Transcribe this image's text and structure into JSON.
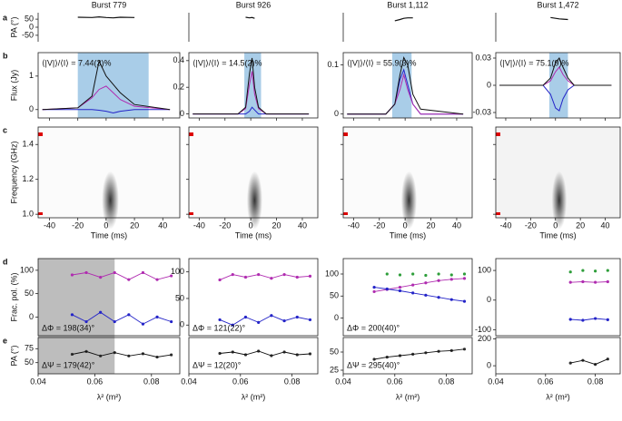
{
  "labels": {
    "panels": [
      "a",
      "b",
      "c",
      "d",
      "e"
    ],
    "pa_a": "PA (°)",
    "flux": "Flux (Jy)",
    "freq": "Frequency (GHz)",
    "time": "Time (ms)",
    "frac": "Frac. pol. (%)",
    "pa_e": "PA (°)",
    "lambda": "λ² (m²)"
  },
  "time_ticks": [
    -40,
    -20,
    0,
    20,
    40
  ],
  "time_lim": [
    -48,
    52
  ],
  "freq_ticks": [
    {
      "value": 1.0,
      "label": "1.0"
    },
    1.2,
    1.4
  ],
  "freq_lim": [
    0.98,
    1.5
  ],
  "lambda_ticks": [
    0.04,
    0.06,
    0.08
  ],
  "lambda_lim": [
    0.04,
    0.09
  ],
  "bursts": [
    {
      "title": "Burst 779",
      "ratio": "⟨|V|⟩/⟨I⟩ = 7.44(3)%",
      "shade": [
        -20,
        30
      ],
      "pa_lim": [
        -90,
        90
      ],
      "pa_ticks": [
        50,
        0,
        -50
      ],
      "flux_lim": [
        -0.25,
        1.7
      ],
      "flux_ticks": [
        0,
        1
      ],
      "time": [
        -45,
        -20,
        -10,
        -5,
        0,
        5,
        10,
        20,
        45
      ],
      "pa": [
        null,
        62,
        60,
        64,
        60,
        58,
        62,
        60,
        null
      ],
      "total": [
        0,
        0.05,
        0.4,
        1.45,
        1.0,
        0.75,
        0.5,
        0.15,
        0
      ],
      "linear": [
        0,
        0.05,
        0.35,
        0.6,
        0.7,
        0.5,
        0.3,
        0.1,
        0
      ],
      "circular": [
        0,
        0,
        0,
        -0.02,
        -0.05,
        -0.1,
        -0.05,
        0,
        0
      ],
      "frac_lim": [
        -40,
        125
      ],
      "frac_ticks": [
        0,
        50,
        100
      ],
      "pa2_lim": [
        30,
        95
      ],
      "pa2_ticks": [
        50,
        75
      ],
      "lam": [
        0.052,
        0.057,
        0.062,
        0.067,
        0.072,
        0.077,
        0.082,
        0.087
      ],
      "frac_lin": [
        90,
        95,
        85,
        95,
        80,
        95,
        80,
        88
      ],
      "frac_circ": [
        5,
        -10,
        10,
        -10,
        5,
        -15,
        0,
        -10
      ],
      "pa2": [
        65,
        70,
        62,
        68,
        62,
        66,
        60,
        64
      ],
      "gray": [
        0.04,
        0.067
      ],
      "dphi": "ΔΦ = 198(34)°",
      "dpsi": "ΔΨ = 179(42)°"
    },
    {
      "title": "Burst 926",
      "ratio": "⟨|V|⟩/⟨I⟩ = 14.5(2)%",
      "shade": [
        -5,
        8
      ],
      "pa_lim": [
        -90,
        90
      ],
      "flux_lim": [
        -0.03,
        0.46
      ],
      "flux_ticks": [
        0,
        0.2,
        0.4
      ],
      "time": [
        -45,
        -10,
        -4,
        -1,
        1,
        3,
        6,
        12,
        45
      ],
      "pa": [
        null,
        null,
        62,
        58,
        60,
        55,
        null,
        null,
        null
      ],
      "total": [
        0,
        0,
        0.05,
        0.3,
        0.42,
        0.2,
        0.05,
        0,
        0
      ],
      "linear": [
        0,
        0,
        0.04,
        0.22,
        0.32,
        0.15,
        0.04,
        0,
        0
      ],
      "circular": [
        0,
        0,
        0,
        0.02,
        0.05,
        0.03,
        0,
        0,
        0
      ],
      "frac_lim": [
        -20,
        125
      ],
      "frac_ticks": [
        0,
        50,
        100
      ],
      "pa2_lim": [
        -20,
        60
      ],
      "lam": [
        0.052,
        0.057,
        0.062,
        0.067,
        0.072,
        0.077,
        0.082,
        0.087
      ],
      "frac_lin": [
        85,
        95,
        90,
        95,
        88,
        95,
        90,
        92
      ],
      "frac_circ": [
        10,
        0,
        15,
        5,
        18,
        8,
        15,
        10
      ],
      "pa2": [
        25,
        28,
        22,
        30,
        20,
        28,
        22,
        24
      ],
      "dphi": "ΔΦ = 121(22)°",
      "dpsi": "ΔΨ = 12(20)°"
    },
    {
      "title": "Burst 1,112",
      "ratio": "⟨|V|⟩/⟨I⟩ = 55.9(3)%",
      "shade": [
        -10,
        5
      ],
      "pa_lim": [
        -90,
        90
      ],
      "flux_lim": [
        -0.008,
        0.125
      ],
      "flux_ticks": [
        0,
        0.1
      ],
      "time": [
        -45,
        -15,
        -8,
        -4,
        -1,
        2,
        6,
        12,
        45
      ],
      "pa": [
        null,
        null,
        40,
        48,
        55,
        58,
        58,
        null,
        null
      ],
      "total": [
        0,
        0,
        0.02,
        0.08,
        0.115,
        0.1,
        0.04,
        0.01,
        0
      ],
      "linear": [
        0,
        0,
        0.02,
        0.05,
        0.08,
        0.05,
        0.02,
        0,
        0
      ],
      "circular": [
        0,
        0,
        0.02,
        0.07,
        0.09,
        0.06,
        0.02,
        0,
        0
      ],
      "frac_lim": [
        -40,
        135
      ],
      "frac_ticks": [
        0,
        50,
        100
      ],
      "pa2_lim": [
        20,
        70
      ],
      "pa2_ticks": [
        25,
        50
      ],
      "lam": [
        0.052,
        0.057,
        0.062,
        0.067,
        0.072,
        0.077,
        0.082,
        0.087
      ],
      "frac_lin": [
        60,
        65,
        70,
        75,
        80,
        85,
        88,
        90
      ],
      "frac_circ": [
        70,
        66,
        62,
        57,
        52,
        47,
        42,
        38
      ],
      "frac_tot": [
        null,
        100,
        98,
        100,
        97,
        100,
        98,
        100
      ],
      "pa2": [
        40,
        43,
        45,
        47,
        49,
        51,
        52,
        54
      ],
      "dphi": "ΔΦ = 200(40)°",
      "dpsi": "ΔΨ = 295(40)°"
    },
    {
      "title": "Burst 1,472",
      "ratio": "⟨|V|⟩/⟨I⟩ = 75.1(9)%",
      "shade": [
        -5,
        10
      ],
      "pa_lim": [
        -90,
        90
      ],
      "flux_lim": [
        -0.036,
        0.036
      ],
      "flux_ticks": [
        -0.03,
        0,
        0.03
      ],
      "time": [
        -45,
        -10,
        -4,
        0,
        3,
        6,
        10,
        15,
        45
      ],
      "pa": [
        null,
        null,
        60,
        55,
        52,
        50,
        48,
        null,
        null
      ],
      "total": [
        0,
        0,
        0.008,
        0.025,
        0.03,
        0.02,
        0.008,
        0,
        0
      ],
      "linear": [
        0,
        0,
        0.005,
        0.015,
        0.02,
        0.012,
        0.005,
        0,
        0
      ],
      "circular": [
        0,
        0,
        -0.01,
        -0.025,
        -0.028,
        -0.015,
        -0.005,
        0,
        0
      ],
      "frac_lim": [
        -120,
        140
      ],
      "frac_ticks": [
        -100,
        0,
        100
      ],
      "pa2_lim": [
        -60,
        210
      ],
      "pa2_ticks": [
        0,
        200
      ],
      "lam": [
        0.07,
        0.075,
        0.08,
        0.085
      ],
      "frac_lin": [
        60,
        62,
        60,
        62
      ],
      "frac_circ": [
        -65,
        -68,
        -62,
        -66
      ],
      "frac_tot": [
        95,
        100,
        98,
        100
      ],
      "pa2": [
        20,
        40,
        10,
        50
      ]
    }
  ]
}
